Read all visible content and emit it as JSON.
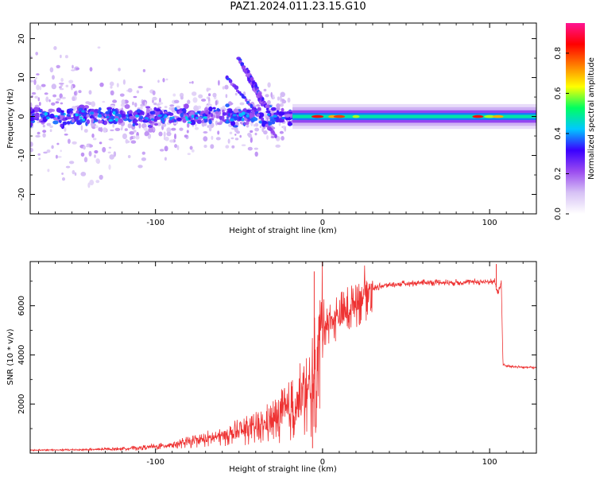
{
  "title": "PAZ1.2024.011.23.15.G10",
  "chart_data": [
    {
      "type": "heatmap",
      "title": "",
      "xlabel": "Height of straight line (km)",
      "ylabel": "Frequency (Hz)",
      "xlim": [
        -175,
        128
      ],
      "ylim": [
        -25,
        24
      ],
      "xticks": [
        -100,
        0,
        100
      ],
      "yticks": [
        -20,
        -10,
        0,
        10,
        20
      ],
      "colorbar": {
        "label": "Normalized spectral amplitude",
        "range": [
          0,
          0.95
        ],
        "ticks": [
          0.0,
          0.2,
          0.4,
          0.6,
          0.8
        ],
        "colormap": [
          "#ffffff",
          "#d7c2f5",
          "#9b4cf0",
          "#3a00ff",
          "#00c8ff",
          "#00ff60",
          "#ffff00",
          "#ff7f00",
          "#ff0000",
          "#ff1493"
        ]
      },
      "features": {
        "noise_region_x": [
          -175,
          -20
        ],
        "scatter_center_hz": 0,
        "diagonal_streaks": [
          {
            "x": [
              -57,
              -28
            ],
            "y": [
              10,
              -5
            ]
          },
          {
            "x": [
              -50,
              -36
            ],
            "y": [
              15,
              3
            ]
          },
          {
            "x": [
              -45,
              -33
            ],
            "y": [
              12,
              2
            ]
          }
        ],
        "ridge": {
          "x": [
            -18,
            128
          ],
          "freq_hz": 0,
          "width_hz": 2,
          "strong_amplitude": 0.9
        }
      }
    },
    {
      "type": "line",
      "title": "",
      "xlabel": "Height of straight line (km)",
      "ylabel": "SNR (10 * v/v)",
      "xlim": [
        -175,
        128
      ],
      "ylim": [
        0,
        7800
      ],
      "xticks": [
        -100,
        0,
        100
      ],
      "yticks": [
        2000,
        4000,
        6000
      ],
      "color": "#ee3333",
      "series": [
        {
          "name": "",
          "x": [
            -175,
            -160,
            -140,
            -120,
            -100,
            -80,
            -60,
            -40,
            -30,
            -20,
            -15,
            -10,
            -7,
            -5,
            -3,
            -2,
            -1,
            0,
            5,
            10,
            15,
            20,
            25,
            30,
            35,
            40,
            50,
            60,
            70,
            80,
            90,
            100,
            103,
            105,
            107,
            108,
            110,
            115,
            120,
            128
          ],
          "y": [
            120,
            130,
            140,
            180,
            260,
            450,
            700,
            1000,
            1300,
            1700,
            2000,
            2300,
            2600,
            3000,
            3800,
            4400,
            5000,
            5300,
            5400,
            5600,
            5800,
            6200,
            6500,
            6700,
            6800,
            6850,
            6900,
            6950,
            6950,
            6950,
            6970,
            6980,
            7000,
            6500,
            6950,
            3600,
            3550,
            3520,
            3500,
            3480
          ]
        }
      ],
      "spikes": [
        {
          "x": -5,
          "y": 7400
        },
        {
          "x": -6,
          "y": 200
        },
        {
          "x": 104,
          "y": 7700
        }
      ]
    }
  ]
}
